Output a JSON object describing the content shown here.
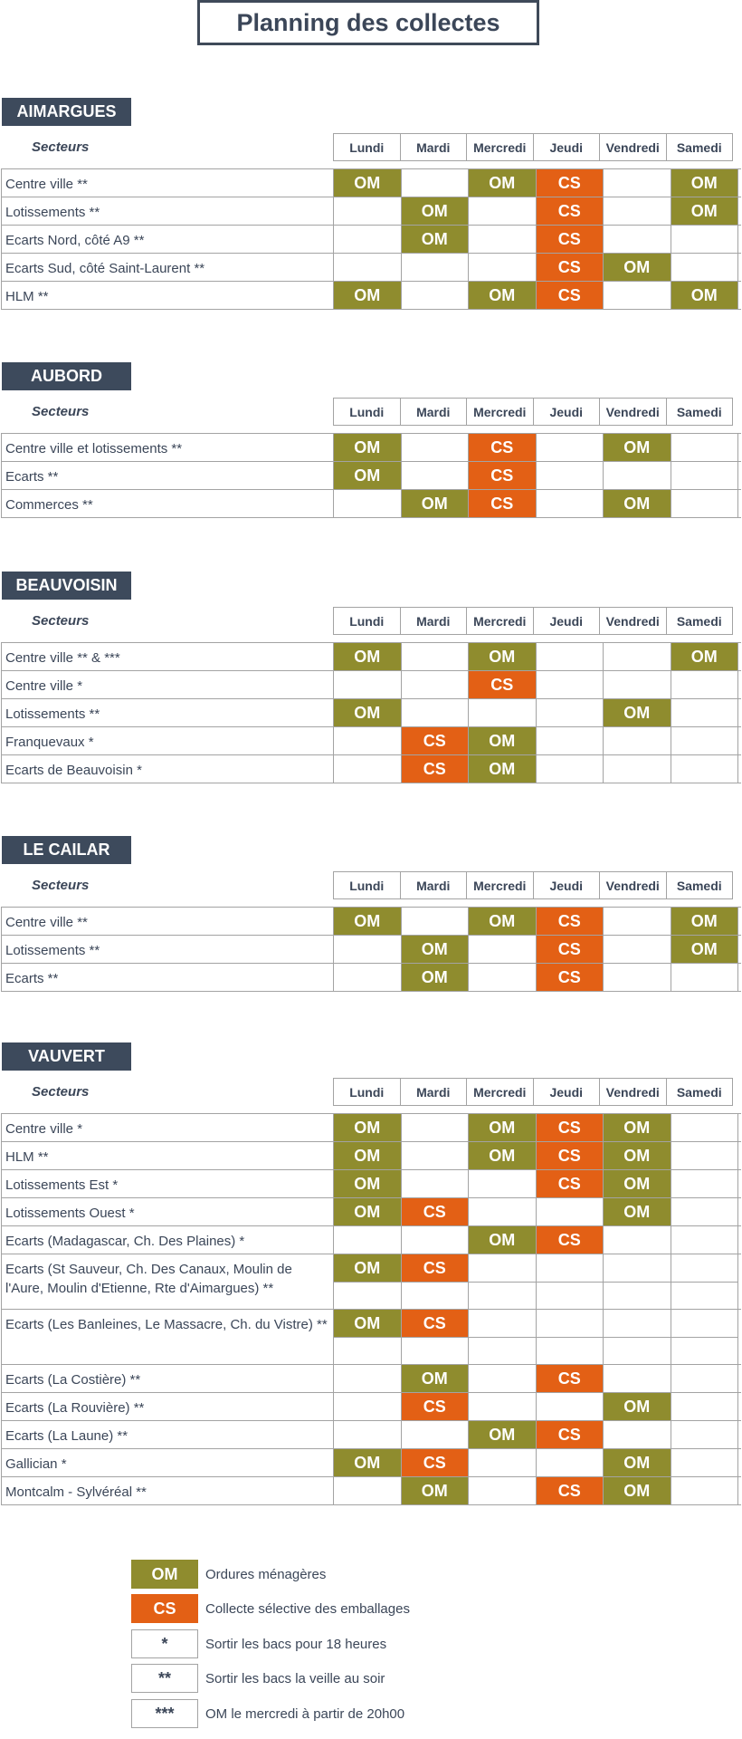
{
  "title": "Planning des collectes",
  "secteurs_label": "Secteurs",
  "days": [
    "Lundi",
    "Mardi",
    "Mercredi",
    "Jeudi",
    "Vendredi",
    "Samedi"
  ],
  "colors": {
    "om": "#8f8c2e",
    "cs": "#e36015",
    "header_badge": "#3d4a5c",
    "text": "#3b4658"
  },
  "communes": [
    {
      "name": "AIMARGUES",
      "rows": [
        {
          "sector": "Centre ville **",
          "cells": [
            [
              "OM"
            ],
            [
              ""
            ],
            [
              "OM"
            ],
            [
              "CS"
            ],
            [
              ""
            ],
            [
              "OM"
            ]
          ]
        },
        {
          "sector": "Lotissements **",
          "cells": [
            [
              ""
            ],
            [
              "OM"
            ],
            [
              ""
            ],
            [
              "CS"
            ],
            [
              ""
            ],
            [
              "OM"
            ]
          ]
        },
        {
          "sector": "Ecarts Nord, côté A9 **",
          "cells": [
            [
              ""
            ],
            [
              "OM"
            ],
            [
              ""
            ],
            [
              "CS"
            ],
            [
              ""
            ],
            [
              ""
            ]
          ]
        },
        {
          "sector": "Ecarts Sud, côté Saint-Laurent **",
          "cells": [
            [
              ""
            ],
            [
              ""
            ],
            [
              ""
            ],
            [
              "CS"
            ],
            [
              "OM"
            ],
            [
              ""
            ]
          ]
        },
        {
          "sector": "HLM **",
          "cells": [
            [
              "OM"
            ],
            [
              ""
            ],
            [
              "OM"
            ],
            [
              "CS"
            ],
            [
              ""
            ],
            [
              "OM"
            ]
          ]
        }
      ]
    },
    {
      "name": "AUBORD",
      "rows": [
        {
          "sector": "Centre ville et lotissements **",
          "cells": [
            [
              "OM"
            ],
            [
              ""
            ],
            [
              "CS"
            ],
            [
              ""
            ],
            [
              "OM"
            ],
            [
              ""
            ]
          ]
        },
        {
          "sector": "Ecarts **",
          "cells": [
            [
              "OM"
            ],
            [
              ""
            ],
            [
              "CS"
            ],
            [
              ""
            ],
            [
              ""
            ],
            [
              ""
            ]
          ]
        },
        {
          "sector": "Commerces **",
          "cells": [
            [
              ""
            ],
            [
              "OM"
            ],
            [
              "CS"
            ],
            [
              ""
            ],
            [
              "OM"
            ],
            [
              ""
            ]
          ]
        }
      ]
    },
    {
      "name": "BEAUVOISIN",
      "rows": [
        {
          "sector": "Centre ville ** & ***",
          "cells": [
            [
              "OM"
            ],
            [
              ""
            ],
            [
              "OM"
            ],
            [
              ""
            ],
            [
              ""
            ],
            [
              "OM"
            ]
          ]
        },
        {
          "sector": "Centre ville *",
          "cells": [
            [
              ""
            ],
            [
              ""
            ],
            [
              "CS"
            ],
            [
              ""
            ],
            [
              ""
            ],
            [
              ""
            ]
          ]
        },
        {
          "sector": "Lotissements **",
          "cells": [
            [
              "OM"
            ],
            [
              ""
            ],
            [
              ""
            ],
            [
              ""
            ],
            [
              "OM"
            ],
            [
              ""
            ]
          ]
        },
        {
          "sector": "Franquevaux *",
          "cells": [
            [
              ""
            ],
            [
              "CS"
            ],
            [
              "OM"
            ],
            [
              ""
            ],
            [
              ""
            ],
            [
              ""
            ]
          ]
        },
        {
          "sector": "Ecarts de Beauvoisin *",
          "cells": [
            [
              ""
            ],
            [
              "CS"
            ],
            [
              "OM"
            ],
            [
              ""
            ],
            [
              ""
            ],
            [
              ""
            ]
          ]
        }
      ]
    },
    {
      "name": "LE CAILAR",
      "rows": [
        {
          "sector": "Centre ville **",
          "cells": [
            [
              "OM"
            ],
            [
              ""
            ],
            [
              "OM"
            ],
            [
              "CS"
            ],
            [
              ""
            ],
            [
              "OM"
            ]
          ]
        },
        {
          "sector": "Lotissements **",
          "cells": [
            [
              ""
            ],
            [
              "OM"
            ],
            [
              ""
            ],
            [
              "CS"
            ],
            [
              ""
            ],
            [
              "OM"
            ]
          ]
        },
        {
          "sector": "Ecarts **",
          "cells": [
            [
              ""
            ],
            [
              "OM"
            ],
            [
              ""
            ],
            [
              "CS"
            ],
            [
              ""
            ],
            [
              ""
            ]
          ]
        }
      ]
    },
    {
      "name": "VAUVERT",
      "rows": [
        {
          "sector": "Centre ville *",
          "cells": [
            [
              "OM"
            ],
            [
              ""
            ],
            [
              "OM"
            ],
            [
              "CS"
            ],
            [
              "OM"
            ],
            [
              ""
            ]
          ]
        },
        {
          "sector": "HLM **",
          "cells": [
            [
              "OM"
            ],
            [
              ""
            ],
            [
              "OM"
            ],
            [
              "CS"
            ],
            [
              "OM"
            ],
            [
              ""
            ]
          ]
        },
        {
          "sector": "Lotissements Est *",
          "cells": [
            [
              "OM"
            ],
            [
              ""
            ],
            [
              ""
            ],
            [
              "CS"
            ],
            [
              "OM"
            ],
            [
              ""
            ]
          ]
        },
        {
          "sector": "Lotissements Ouest *",
          "cells": [
            [
              "OM"
            ],
            [
              "CS"
            ],
            [
              ""
            ],
            [
              ""
            ],
            [
              "OM"
            ],
            [
              ""
            ]
          ]
        },
        {
          "sector": "Ecarts (Madagascar, Ch. Des Plaines) *",
          "cells": [
            [
              ""
            ],
            [
              ""
            ],
            [
              "OM"
            ],
            [
              "CS"
            ],
            [
              ""
            ],
            [
              ""
            ]
          ]
        },
        {
          "sector": "Ecarts (St Sauveur, Ch. Des Canaux, Moulin de l'Aure, Moulin d'Etienne, Rte d'Aimargues) **",
          "cells": [
            [
              "OM",
              ""
            ],
            [
              "CS",
              ""
            ],
            [
              "",
              ""
            ],
            [
              "",
              ""
            ],
            [
              "",
              ""
            ],
            [
              "",
              ""
            ]
          ]
        },
        {
          "sector": "Ecarts (Les Banleines, Le Massacre, Ch. du Vistre) **",
          "cells": [
            [
              "OM",
              ""
            ],
            [
              "CS",
              ""
            ],
            [
              "",
              ""
            ],
            [
              "",
              ""
            ],
            [
              "",
              ""
            ],
            [
              "",
              ""
            ]
          ]
        },
        {
          "sector": "Ecarts (La Costière) **",
          "cells": [
            [
              ""
            ],
            [
              "OM"
            ],
            [
              ""
            ],
            [
              "CS"
            ],
            [
              ""
            ],
            [
              ""
            ]
          ]
        },
        {
          "sector": "Ecarts (La Rouvière) **",
          "cells": [
            [
              ""
            ],
            [
              "CS"
            ],
            [
              ""
            ],
            [
              ""
            ],
            [
              "OM"
            ],
            [
              ""
            ]
          ]
        },
        {
          "sector": "Ecarts (La Laune) **",
          "cells": [
            [
              ""
            ],
            [
              ""
            ],
            [
              "OM"
            ],
            [
              "CS"
            ],
            [
              ""
            ],
            [
              ""
            ]
          ]
        },
        {
          "sector": "Gallician *",
          "cells": [
            [
              "OM"
            ],
            [
              "CS"
            ],
            [
              ""
            ],
            [
              ""
            ],
            [
              "OM"
            ],
            [
              ""
            ]
          ]
        },
        {
          "sector": "Montcalm - Sylvéréal **",
          "cells": [
            [
              ""
            ],
            [
              "OM"
            ],
            [
              ""
            ],
            [
              "CS"
            ],
            [
              "OM"
            ],
            [
              ""
            ]
          ]
        }
      ]
    }
  ],
  "legend": [
    {
      "code": "OM",
      "kind": "om",
      "text": "Ordures ménagères"
    },
    {
      "code": "CS",
      "kind": "cs",
      "text": "Collecte sélective des emballages"
    },
    {
      "code": "*",
      "kind": "plain",
      "text": "Sortir les bacs pour 18 heures"
    },
    {
      "code": "**",
      "kind": "plain",
      "text": "Sortir les bacs la veille au soir"
    },
    {
      "code": "***",
      "kind": "plain",
      "text": "OM le mercredi à partir de 20h00"
    }
  ]
}
